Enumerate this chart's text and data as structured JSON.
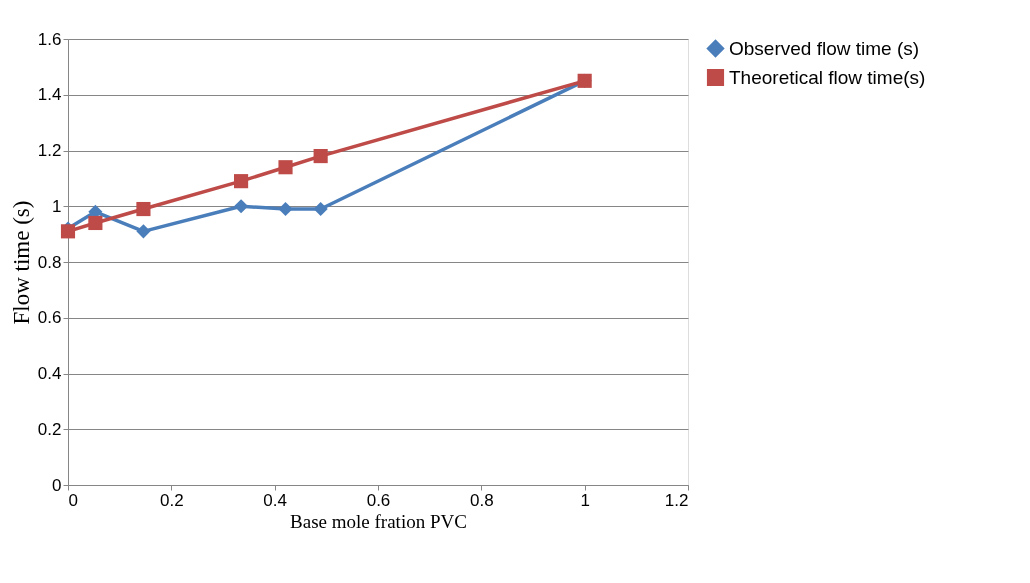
{
  "chart_data": {
    "type": "line",
    "xlabel": "Base mole fration  PVC",
    "ylabel": "Flow time (s)",
    "xlim": [
      0,
      1.2
    ],
    "xticks": [
      0,
      0.2,
      0.4,
      0.6,
      0.8,
      1,
      1.2
    ],
    "ylim": [
      0,
      1.6
    ],
    "yticks": [
      0,
      0.2,
      0.4,
      0.6,
      0.8,
      1,
      1.2,
      1.4,
      1.6
    ],
    "x": [
      0,
      0.053,
      0.146,
      0.335,
      0.421,
      0.489,
      1
    ],
    "series": [
      {
        "name": "Observed flow time (s)",
        "color": "#4a7ebb",
        "marker": "diamond",
        "values": [
          0.92,
          0.98,
          0.91,
          1.0,
          0.99,
          0.99,
          1.45
        ]
      },
      {
        "name": "Theoretical flow time(s)",
        "color": "#be4b48",
        "marker": "square",
        "values": [
          0.91,
          0.94,
          0.99,
          1.09,
          1.14,
          1.18,
          1.45
        ]
      }
    ],
    "grid": "y",
    "legend": "right",
    "line_style": "solid"
  }
}
